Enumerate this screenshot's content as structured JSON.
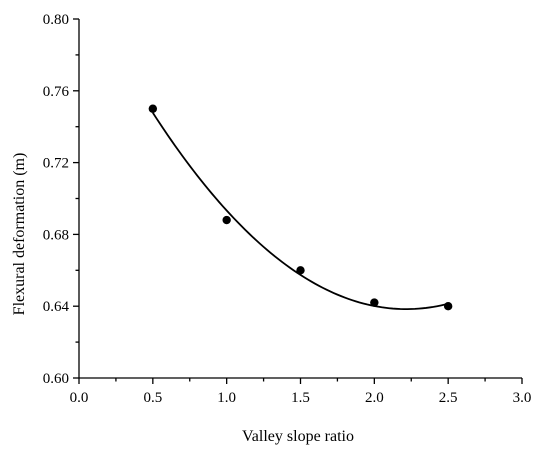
{
  "chart_data": {
    "type": "scatter",
    "title": "",
    "xlabel": "Valley slope ratio",
    "ylabel": "Flexural deformation (m)",
    "xlim": [
      0.0,
      3.0
    ],
    "ylim": [
      0.6,
      0.8
    ],
    "x_ticks": [
      "0.0",
      "0.5",
      "1.0",
      "1.5",
      "2.0",
      "2.5",
      "3.0"
    ],
    "y_ticks": [
      "0.60",
      "0.64",
      "0.68",
      "0.72",
      "0.76",
      "0.80"
    ],
    "grid": false,
    "legend": "none",
    "series": [
      {
        "x": [
          0.5,
          1.0,
          1.5,
          2.0,
          2.5
        ],
        "y": [
          0.75,
          0.688,
          0.66,
          0.642,
          0.64
        ],
        "marker": "filled-circle",
        "color": "#000000"
      }
    ],
    "fit_curve": {
      "type": "polynomial",
      "x_range": [
        0.5,
        2.5
      ],
      "color": "#000000"
    }
  }
}
